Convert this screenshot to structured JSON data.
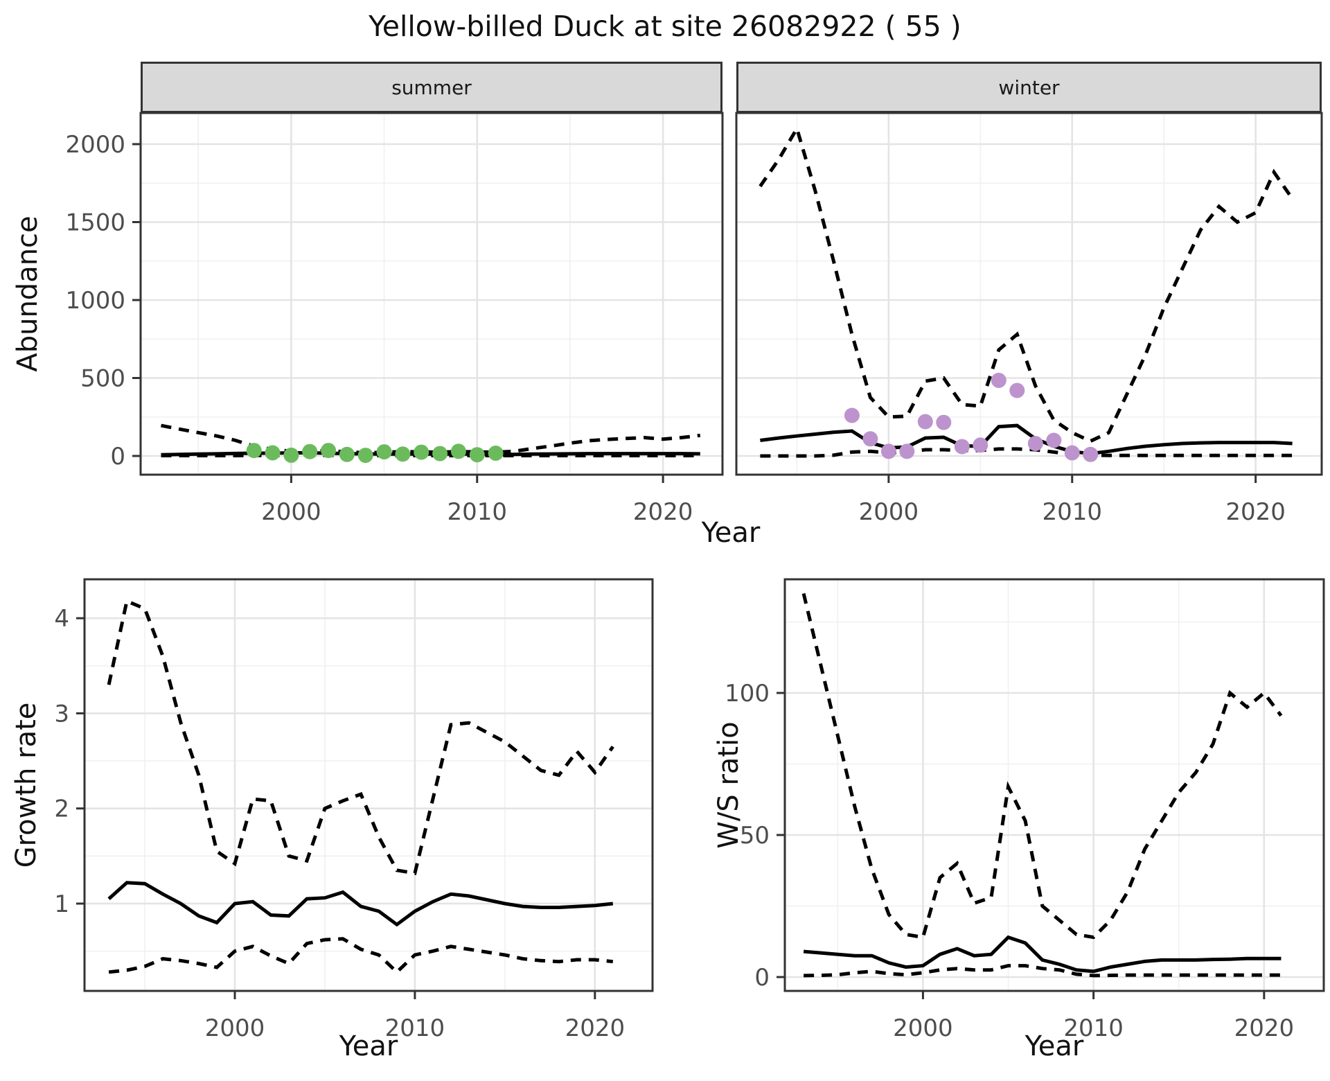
{
  "title": "Yellow-billed Duck at site 26082922 ( 55 )",
  "facets": {
    "summer": "summer",
    "winter": "winter"
  },
  "axis_labels": {
    "abundance": "Abundance",
    "year": "Year",
    "growth": "Growth rate",
    "ws": "W/S ratio"
  },
  "colors": {
    "line": "#000000",
    "summer_points": "#6bbb5d",
    "winter_points": "#bd93ce",
    "grid_major": "#e4e4e4",
    "grid_minor": "#f0f0f0",
    "panel_border": "#333333",
    "tick_mark": "#333333",
    "tick_label": "#4d4d4d",
    "strip_bg": "#d9d9d9"
  },
  "chart_data": [
    {
      "id": "abundance-summer",
      "type": "line",
      "facet": "summer",
      "xlabel": "Year",
      "ylabel": "Abundance",
      "x": [
        1993,
        1994,
        1995,
        1996,
        1997,
        1998,
        1999,
        2000,
        2001,
        2002,
        2003,
        2004,
        2005,
        2006,
        2007,
        2008,
        2009,
        2010,
        2011,
        2012,
        2013,
        2014,
        2015,
        2016,
        2017,
        2018,
        2019,
        2020,
        2021,
        2022
      ],
      "series": [
        {
          "name": "mean",
          "style": "solid",
          "values": [
            8,
            10,
            12,
            14,
            16,
            18,
            18,
            20,
            20,
            18,
            15,
            13,
            12,
            12,
            12,
            12,
            12,
            12,
            10,
            10,
            12,
            13,
            14,
            15,
            15,
            15,
            15,
            15,
            15,
            14
          ]
        },
        {
          "name": "upper-ci",
          "style": "dashed",
          "values": [
            195,
            172,
            150,
            128,
            100,
            62,
            42,
            30,
            34,
            34,
            26,
            20,
            24,
            28,
            26,
            24,
            28,
            26,
            24,
            30,
            48,
            64,
            82,
            98,
            106,
            112,
            118,
            108,
            118,
            132
          ]
        },
        {
          "name": "lower-ci",
          "style": "dashed",
          "values": [
            2,
            2,
            2,
            2,
            2,
            3,
            3,
            4,
            4,
            4,
            3,
            2,
            2,
            2,
            2,
            2,
            2,
            2,
            2,
            2,
            2,
            2,
            2,
            2,
            2,
            2,
            2,
            2,
            2,
            2
          ]
        }
      ],
      "points": {
        "name": "observed",
        "color_key": "summer_points",
        "x": [
          1998,
          1999,
          2000,
          2001,
          2002,
          2003,
          2004,
          2005,
          2006,
          2007,
          2008,
          2009,
          2010,
          2011
        ],
        "values": [
          35,
          20,
          5,
          28,
          35,
          10,
          4,
          26,
          12,
          24,
          15,
          30,
          8,
          18
        ]
      },
      "xticks": [
        2000,
        2010,
        2020
      ],
      "yticks": [
        0,
        500,
        1000,
        1500,
        2000
      ],
      "xlim": [
        1991.9,
        2023.2
      ],
      "ylim": [
        -120,
        2200
      ]
    },
    {
      "id": "abundance-winter",
      "type": "line",
      "facet": "winter",
      "xlabel": "Year",
      "ylabel": "Abundance",
      "x": [
        1993,
        1994,
        1995,
        1996,
        1997,
        1998,
        1999,
        2000,
        2001,
        2002,
        2003,
        2004,
        2005,
        2006,
        2007,
        2008,
        2009,
        2010,
        2011,
        2012,
        2013,
        2014,
        2015,
        2016,
        2017,
        2018,
        2019,
        2020,
        2021,
        2022
      ],
      "series": [
        {
          "name": "mean",
          "style": "solid",
          "values": [
            100,
            115,
            128,
            140,
            152,
            160,
            85,
            52,
            58,
            115,
            120,
            65,
            62,
            188,
            195,
            110,
            62,
            28,
            15,
            30,
            48,
            62,
            72,
            80,
            84,
            86,
            86,
            86,
            86,
            80
          ]
        },
        {
          "name": "upper-ci",
          "style": "dashed",
          "values": [
            1730,
            1900,
            2100,
            1700,
            1250,
            780,
            375,
            250,
            255,
            480,
            500,
            330,
            320,
            680,
            780,
            450,
            230,
            150,
            95,
            150,
            400,
            650,
            950,
            1200,
            1450,
            1600,
            1500,
            1560,
            1820,
            1650
          ]
        },
        {
          "name": "lower-ci",
          "style": "dashed",
          "values": [
            0,
            0,
            0,
            0,
            5,
            25,
            30,
            20,
            25,
            40,
            40,
            35,
            35,
            45,
            45,
            40,
            25,
            10,
            5,
            3,
            3,
            3,
            3,
            3,
            3,
            3,
            3,
            3,
            3,
            3
          ]
        }
      ],
      "points": {
        "name": "observed",
        "color_key": "winter_points",
        "x": [
          1998,
          1999,
          2000,
          2001,
          2002,
          2003,
          2004,
          2005,
          2006,
          2007,
          2008,
          2009,
          2010,
          2011
        ],
        "values": [
          260,
          110,
          30,
          30,
          220,
          215,
          60,
          70,
          485,
          420,
          80,
          100,
          20,
          10
        ]
      },
      "xticks": [
        2000,
        2010,
        2020
      ],
      "yticks": [
        0,
        500,
        1000,
        1500,
        2000
      ],
      "xlim": [
        1991.7,
        2023.6
      ],
      "ylim": [
        -120,
        2200
      ]
    },
    {
      "id": "growth-rate",
      "type": "line",
      "facet": null,
      "xlabel": "Year",
      "ylabel": "Growth rate",
      "x": [
        1993,
        1994,
        1995,
        1996,
        1997,
        1998,
        1999,
        2000,
        2001,
        2002,
        2003,
        2004,
        2005,
        2006,
        2007,
        2008,
        2009,
        2010,
        2011,
        2012,
        2013,
        2014,
        2015,
        2016,
        2017,
        2018,
        2019,
        2020,
        2021
      ],
      "series": [
        {
          "name": "mean",
          "style": "solid",
          "values": [
            1.05,
            1.22,
            1.21,
            1.1,
            1.0,
            0.87,
            0.8,
            1.0,
            1.02,
            0.88,
            0.87,
            1.05,
            1.06,
            1.12,
            0.97,
            0.92,
            0.78,
            0.92,
            1.02,
            1.1,
            1.08,
            1.04,
            1.0,
            0.97,
            0.96,
            0.96,
            0.97,
            0.98,
            1.0
          ]
        },
        {
          "name": "upper-ci",
          "style": "dashed",
          "values": [
            3.3,
            4.18,
            4.1,
            3.6,
            2.9,
            2.35,
            1.55,
            1.42,
            2.1,
            2.08,
            1.5,
            1.45,
            2.0,
            2.08,
            2.15,
            1.7,
            1.35,
            1.32,
            2.1,
            2.88,
            2.9,
            2.8,
            2.7,
            2.55,
            2.4,
            2.35,
            2.6,
            2.38,
            2.65
          ]
        },
        {
          "name": "lower-ci",
          "style": "dashed",
          "values": [
            0.28,
            0.3,
            0.34,
            0.42,
            0.4,
            0.37,
            0.33,
            0.5,
            0.55,
            0.45,
            0.37,
            0.58,
            0.62,
            0.63,
            0.52,
            0.46,
            0.28,
            0.46,
            0.5,
            0.55,
            0.52,
            0.49,
            0.46,
            0.42,
            0.4,
            0.39,
            0.41,
            0.41,
            0.39
          ]
        }
      ],
      "points": null,
      "xticks": [
        2000,
        2010,
        2020
      ],
      "yticks": [
        1,
        2,
        3,
        4
      ],
      "xlim": [
        1991.65,
        2023.2
      ],
      "ylim": [
        0.082,
        4.409
      ]
    },
    {
      "id": "ws-ratio",
      "type": "line",
      "facet": null,
      "xlabel": "Year",
      "ylabel": "W/S ratio",
      "x": [
        1993,
        1994,
        1995,
        1996,
        1997,
        1998,
        1999,
        2000,
        2001,
        2002,
        2003,
        2004,
        2005,
        2006,
        2007,
        2008,
        2009,
        2010,
        2011,
        2012,
        2013,
        2014,
        2015,
        2016,
        2017,
        2018,
        2019,
        2020,
        2021
      ],
      "series": [
        {
          "name": "mean",
          "style": "solid",
          "values": [
            9.0,
            8.5,
            8.0,
            7.5,
            7.5,
            5.0,
            3.5,
            4.0,
            8.0,
            10.0,
            7.5,
            8.0,
            14.0,
            12.0,
            6.0,
            4.5,
            2.5,
            2.0,
            3.5,
            4.5,
            5.5,
            6.0,
            6.0,
            6.0,
            6.2,
            6.3,
            6.5,
            6.5,
            6.5
          ]
        },
        {
          "name": "upper-ci",
          "style": "dashed",
          "values": [
            135,
            110,
            85,
            60,
            38,
            22,
            15,
            14,
            35,
            40,
            26,
            28,
            67,
            55,
            25,
            20,
            15,
            14,
            20,
            30,
            45,
            55,
            65,
            72,
            82,
            100,
            95,
            100,
            92
          ]
        },
        {
          "name": "lower-ci",
          "style": "dashed",
          "values": [
            0.5,
            0.6,
            0.8,
            1.5,
            2.0,
            1.2,
            0.8,
            1.5,
            2.5,
            3.0,
            2.5,
            2.5,
            4.0,
            4.0,
            3.0,
            2.5,
            1.0,
            0.5,
            0.6,
            0.7,
            0.7,
            0.7,
            0.7,
            0.7,
            0.7,
            0.7,
            0.7,
            0.7,
            0.7
          ]
        }
      ],
      "points": null,
      "xticks": [
        2000,
        2010,
        2020
      ],
      "yticks": [
        0,
        50,
        100
      ],
      "xlim": [
        1991.9,
        2023.5
      ],
      "ylim": [
        -4.88,
        140
      ]
    }
  ]
}
